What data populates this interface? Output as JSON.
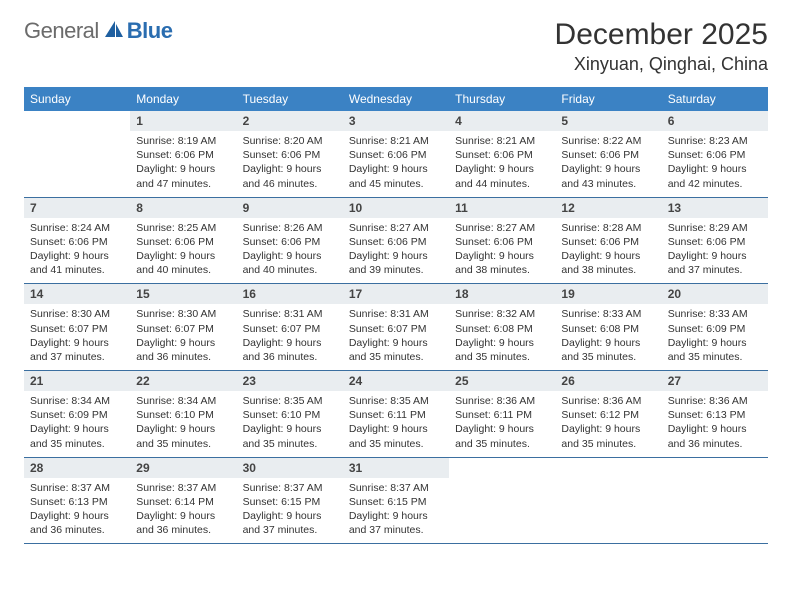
{
  "logo": {
    "general": "General",
    "blue": "Blue"
  },
  "colors": {
    "header_bg": "#3b82c4",
    "header_text": "#ffffff",
    "daynum_bg": "#e9edf0",
    "week_border": "#3b6fa0",
    "logo_gray": "#6b6b6b",
    "logo_blue": "#2a6db0",
    "logo_icon": "#1e5fa0"
  },
  "title": "December 2025",
  "location": "Xinyuan, Qinghai, China",
  "weekdays": [
    "Sunday",
    "Monday",
    "Tuesday",
    "Wednesday",
    "Thursday",
    "Friday",
    "Saturday"
  ],
  "weeks": [
    [
      {
        "n": "",
        "lines": []
      },
      {
        "n": "1",
        "lines": [
          "Sunrise: 8:19 AM",
          "Sunset: 6:06 PM",
          "Daylight: 9 hours and 47 minutes."
        ]
      },
      {
        "n": "2",
        "lines": [
          "Sunrise: 8:20 AM",
          "Sunset: 6:06 PM",
          "Daylight: 9 hours and 46 minutes."
        ]
      },
      {
        "n": "3",
        "lines": [
          "Sunrise: 8:21 AM",
          "Sunset: 6:06 PM",
          "Daylight: 9 hours and 45 minutes."
        ]
      },
      {
        "n": "4",
        "lines": [
          "Sunrise: 8:21 AM",
          "Sunset: 6:06 PM",
          "Daylight: 9 hours and 44 minutes."
        ]
      },
      {
        "n": "5",
        "lines": [
          "Sunrise: 8:22 AM",
          "Sunset: 6:06 PM",
          "Daylight: 9 hours and 43 minutes."
        ]
      },
      {
        "n": "6",
        "lines": [
          "Sunrise: 8:23 AM",
          "Sunset: 6:06 PM",
          "Daylight: 9 hours and 42 minutes."
        ]
      }
    ],
    [
      {
        "n": "7",
        "lines": [
          "Sunrise: 8:24 AM",
          "Sunset: 6:06 PM",
          "Daylight: 9 hours and 41 minutes."
        ]
      },
      {
        "n": "8",
        "lines": [
          "Sunrise: 8:25 AM",
          "Sunset: 6:06 PM",
          "Daylight: 9 hours and 40 minutes."
        ]
      },
      {
        "n": "9",
        "lines": [
          "Sunrise: 8:26 AM",
          "Sunset: 6:06 PM",
          "Daylight: 9 hours and 40 minutes."
        ]
      },
      {
        "n": "10",
        "lines": [
          "Sunrise: 8:27 AM",
          "Sunset: 6:06 PM",
          "Daylight: 9 hours and 39 minutes."
        ]
      },
      {
        "n": "11",
        "lines": [
          "Sunrise: 8:27 AM",
          "Sunset: 6:06 PM",
          "Daylight: 9 hours and 38 minutes."
        ]
      },
      {
        "n": "12",
        "lines": [
          "Sunrise: 8:28 AM",
          "Sunset: 6:06 PM",
          "Daylight: 9 hours and 38 minutes."
        ]
      },
      {
        "n": "13",
        "lines": [
          "Sunrise: 8:29 AM",
          "Sunset: 6:06 PM",
          "Daylight: 9 hours and 37 minutes."
        ]
      }
    ],
    [
      {
        "n": "14",
        "lines": [
          "Sunrise: 8:30 AM",
          "Sunset: 6:07 PM",
          "Daylight: 9 hours and 37 minutes."
        ]
      },
      {
        "n": "15",
        "lines": [
          "Sunrise: 8:30 AM",
          "Sunset: 6:07 PM",
          "Daylight: 9 hours and 36 minutes."
        ]
      },
      {
        "n": "16",
        "lines": [
          "Sunrise: 8:31 AM",
          "Sunset: 6:07 PM",
          "Daylight: 9 hours and 36 minutes."
        ]
      },
      {
        "n": "17",
        "lines": [
          "Sunrise: 8:31 AM",
          "Sunset: 6:07 PM",
          "Daylight: 9 hours and 35 minutes."
        ]
      },
      {
        "n": "18",
        "lines": [
          "Sunrise: 8:32 AM",
          "Sunset: 6:08 PM",
          "Daylight: 9 hours and 35 minutes."
        ]
      },
      {
        "n": "19",
        "lines": [
          "Sunrise: 8:33 AM",
          "Sunset: 6:08 PM",
          "Daylight: 9 hours and 35 minutes."
        ]
      },
      {
        "n": "20",
        "lines": [
          "Sunrise: 8:33 AM",
          "Sunset: 6:09 PM",
          "Daylight: 9 hours and 35 minutes."
        ]
      }
    ],
    [
      {
        "n": "21",
        "lines": [
          "Sunrise: 8:34 AM",
          "Sunset: 6:09 PM",
          "Daylight: 9 hours and 35 minutes."
        ]
      },
      {
        "n": "22",
        "lines": [
          "Sunrise: 8:34 AM",
          "Sunset: 6:10 PM",
          "Daylight: 9 hours and 35 minutes."
        ]
      },
      {
        "n": "23",
        "lines": [
          "Sunrise: 8:35 AM",
          "Sunset: 6:10 PM",
          "Daylight: 9 hours and 35 minutes."
        ]
      },
      {
        "n": "24",
        "lines": [
          "Sunrise: 8:35 AM",
          "Sunset: 6:11 PM",
          "Daylight: 9 hours and 35 minutes."
        ]
      },
      {
        "n": "25",
        "lines": [
          "Sunrise: 8:36 AM",
          "Sunset: 6:11 PM",
          "Daylight: 9 hours and 35 minutes."
        ]
      },
      {
        "n": "26",
        "lines": [
          "Sunrise: 8:36 AM",
          "Sunset: 6:12 PM",
          "Daylight: 9 hours and 35 minutes."
        ]
      },
      {
        "n": "27",
        "lines": [
          "Sunrise: 8:36 AM",
          "Sunset: 6:13 PM",
          "Daylight: 9 hours and 36 minutes."
        ]
      }
    ],
    [
      {
        "n": "28",
        "lines": [
          "Sunrise: 8:37 AM",
          "Sunset: 6:13 PM",
          "Daylight: 9 hours and 36 minutes."
        ]
      },
      {
        "n": "29",
        "lines": [
          "Sunrise: 8:37 AM",
          "Sunset: 6:14 PM",
          "Daylight: 9 hours and 36 minutes."
        ]
      },
      {
        "n": "30",
        "lines": [
          "Sunrise: 8:37 AM",
          "Sunset: 6:15 PM",
          "Daylight: 9 hours and 37 minutes."
        ]
      },
      {
        "n": "31",
        "lines": [
          "Sunrise: 8:37 AM",
          "Sunset: 6:15 PM",
          "Daylight: 9 hours and 37 minutes."
        ]
      },
      {
        "n": "",
        "lines": []
      },
      {
        "n": "",
        "lines": []
      },
      {
        "n": "",
        "lines": []
      }
    ]
  ]
}
